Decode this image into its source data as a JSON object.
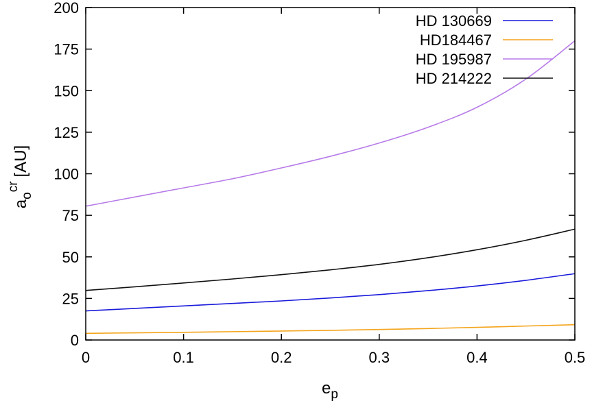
{
  "chart_data": {
    "type": "line",
    "title": "",
    "xlabel": "e",
    "xlabel_sub": "p",
    "ylabel": "a",
    "ylabel_sub": "o",
    "ylabel_sup": "cr",
    "ylabel_unit": "[AU]",
    "xlim": [
      0,
      0.5
    ],
    "ylim": [
      0,
      200
    ],
    "xticks": [
      0,
      0.1,
      0.2,
      0.3,
      0.4,
      0.5
    ],
    "xtick_labels": [
      "0",
      "0.1",
      "0.2",
      "0.3",
      "0.4",
      "0.5"
    ],
    "yticks": [
      0,
      25,
      50,
      75,
      100,
      125,
      150,
      175,
      200
    ],
    "ytick_labels": [
      "0",
      "25",
      "50",
      "75",
      "100",
      "125",
      "150",
      "175",
      "200"
    ],
    "grid": false,
    "legend_position": "top-right",
    "x": [
      0,
      0.05,
      0.1,
      0.15,
      0.2,
      0.25,
      0.3,
      0.35,
      0.4,
      0.45,
      0.5
    ],
    "series": [
      {
        "name": "HD 130669",
        "color": "#1a1adb",
        "values": [
          17.5,
          19.0,
          20.5,
          22.0,
          23.5,
          25.3,
          27.3,
          29.7,
          32.5,
          35.9,
          39.9
        ]
      },
      {
        "name": "HD184467",
        "color": "#f4a41a",
        "values": [
          4.0,
          4.3,
          4.6,
          5.0,
          5.4,
          5.8,
          6.3,
          6.9,
          7.6,
          8.4,
          9.2
        ]
      },
      {
        "name": "HD 195987",
        "color": "#b77be8",
        "values": [
          80.5,
          86.0,
          91.5,
          97.0,
          103.5,
          110.5,
          118.5,
          128.0,
          140.0,
          157.0,
          180.0
        ]
      },
      {
        "name": "HD 214222",
        "color": "#111111",
        "values": [
          29.8,
          32.0,
          34.3,
          36.7,
          39.3,
          42.2,
          45.5,
          49.5,
          54.3,
          60.0,
          66.7
        ]
      }
    ]
  }
}
